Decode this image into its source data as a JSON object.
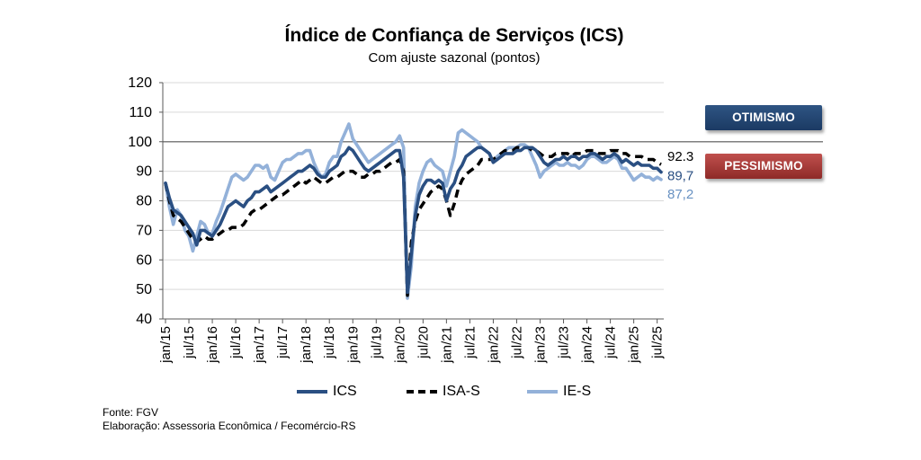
{
  "chart_data": {
    "type": "line",
    "title": "Índice de Confiança de Serviços (ICS)",
    "subtitle": "Com ajuste sazonal (pontos)",
    "ylim": [
      40,
      120
    ],
    "yticks": [
      40,
      50,
      60,
      70,
      80,
      90,
      100,
      110,
      120
    ],
    "reference_line": 100,
    "x": [
      "jan/15",
      "fev/15",
      "mar/15",
      "abr/15",
      "mai/15",
      "jun/15",
      "jul/15",
      "ago/15",
      "set/15",
      "out/15",
      "nov/15",
      "dez/15",
      "jan/16",
      "fev/16",
      "mar/16",
      "abr/16",
      "mai/16",
      "jun/16",
      "jul/16",
      "ago/16",
      "set/16",
      "out/16",
      "nov/16",
      "dez/16",
      "jan/17",
      "fev/17",
      "mar/17",
      "abr/17",
      "mai/17",
      "jun/17",
      "jul/17",
      "ago/17",
      "set/17",
      "out/17",
      "nov/17",
      "dez/17",
      "jan/18",
      "fev/18",
      "mar/18",
      "abr/18",
      "mai/18",
      "jun/18",
      "jul/18",
      "ago/18",
      "set/18",
      "out/18",
      "nov/18",
      "dez/18",
      "jan/19",
      "fev/19",
      "mar/19",
      "abr/19",
      "mai/19",
      "jun/19",
      "jul/19",
      "ago/19",
      "set/19",
      "out/19",
      "nov/19",
      "dez/19",
      "jan/20",
      "fev/20",
      "mar/20",
      "abr/20",
      "mai/20",
      "jun/20",
      "jul/20",
      "ago/20",
      "set/20",
      "out/20",
      "nov/20",
      "dez/20",
      "jan/21",
      "fev/21",
      "mar/21",
      "abr/21",
      "mai/21",
      "jun/21",
      "jul/21",
      "ago/21",
      "set/21",
      "out/21",
      "nov/21",
      "dez/21",
      "jan/22",
      "fev/22",
      "mar/22",
      "abr/22",
      "mai/22",
      "jun/22",
      "jul/22",
      "ago/22",
      "set/22",
      "out/22",
      "nov/22",
      "dez/22",
      "jan/23",
      "fev/23",
      "mar/23",
      "abr/23",
      "mai/23",
      "jun/23",
      "jul/23",
      "ago/23",
      "set/23",
      "out/23",
      "nov/23",
      "dez/23",
      "jan/24",
      "fev/24",
      "mar/24",
      "abr/24",
      "mai/24",
      "jun/24",
      "jul/24",
      "ago/24",
      "set/24",
      "out/24",
      "nov/24",
      "dez/24",
      "jan/25",
      "fev/25",
      "mar/25",
      "abr/25",
      "mai/25",
      "jun/25",
      "jul/25",
      "ago/25"
    ],
    "xtick_labels": [
      "jan/15",
      "jul/15",
      "jan/16",
      "jul/16",
      "jan/17",
      "jul/17",
      "jan/18",
      "jul/18",
      "jan/19",
      "jul/19",
      "jan/20",
      "jul/20",
      "jan/21",
      "jul/21",
      "jan/22",
      "jul/22",
      "jan/23",
      "jul/23",
      "jan/24",
      "jul/24",
      "jan/25",
      "jul/25"
    ],
    "series": [
      {
        "name": "ICS",
        "color": "#2a4f82",
        "dash": "solid",
        "last_label": "89,7",
        "label_color": "#2a4f82",
        "values": [
          86,
          81,
          77,
          76,
          75,
          73,
          71,
          69,
          65,
          70,
          70,
          69,
          68,
          70,
          72,
          75,
          78,
          79,
          80,
          79,
          78,
          80,
          81,
          83,
          83,
          84,
          85,
          83,
          84,
          85,
          86,
          87,
          88,
          89,
          90,
          90,
          91,
          92,
          91,
          89,
          88,
          88,
          90,
          91,
          92,
          95,
          96,
          98,
          97,
          95,
          93,
          91,
          90,
          91,
          92,
          93,
          94,
          95,
          96,
          97,
          97,
          88,
          49,
          62,
          75,
          82,
          85,
          87,
          87,
          86,
          87,
          86,
          80,
          84,
          86,
          90,
          92,
          95,
          96,
          97,
          98,
          98,
          97,
          96,
          93,
          94,
          95,
          96,
          96,
          96,
          97,
          97,
          98,
          98,
          98,
          97,
          95,
          93,
          92,
          93,
          94,
          94,
          95,
          94,
          95,
          95,
          94,
          95,
          95,
          96,
          96,
          95,
          94,
          95,
          95,
          96,
          95,
          93,
          94,
          93,
          92,
          93,
          92,
          92,
          92,
          91,
          91,
          89.7
        ]
      },
      {
        "name": "ISA-S",
        "color": "#000000",
        "dash": "dashed",
        "last_label": "92.3",
        "label_color": "#000000",
        "values": [
          86,
          80,
          75,
          74,
          73,
          71,
          69,
          67,
          66,
          67,
          68,
          67,
          67,
          68,
          69,
          70,
          70,
          71,
          71,
          71,
          72,
          74,
          76,
          77,
          77,
          78,
          79,
          80,
          81,
          82,
          82,
          83,
          84,
          85,
          86,
          87,
          86,
          87,
          88,
          87,
          86,
          86,
          87,
          88,
          88,
          89,
          90,
          90,
          90,
          89,
          88,
          88,
          89,
          89,
          90,
          90,
          91,
          92,
          93,
          93,
          94,
          90,
          48,
          66,
          73,
          77,
          79,
          81,
          83,
          84,
          85,
          84,
          80,
          75,
          79,
          84,
          87,
          89,
          90,
          91,
          92,
          94,
          94,
          94,
          94,
          95,
          96,
          97,
          97,
          97,
          98,
          98,
          98,
          98,
          97,
          97,
          96,
          95,
          95,
          95,
          96,
          96,
          96,
          96,
          95,
          96,
          96,
          96,
          97,
          97,
          97,
          96,
          96,
          96,
          97,
          97,
          97,
          96,
          96,
          95,
          95,
          95,
          95,
          94,
          94,
          94,
          93,
          92.3
        ]
      },
      {
        "name": "IE-S",
        "color": "#93b1d9",
        "dash": "solid",
        "last_label": "87,2",
        "label_color": "#6891c2",
        "values": [
          86,
          78,
          72,
          77,
          75,
          70,
          68,
          63,
          68,
          73,
          72,
          69,
          69,
          73,
          76,
          80,
          84,
          88,
          89,
          88,
          87,
          88,
          90,
          92,
          92,
          91,
          92,
          88,
          87,
          90,
          93,
          94,
          94,
          95,
          96,
          96,
          97,
          97,
          93,
          90,
          88,
          89,
          93,
          95,
          95,
          100,
          103,
          106,
          101,
          99,
          97,
          95,
          93,
          94,
          95,
          96,
          97,
          98,
          99,
          100,
          102,
          98,
          47,
          58,
          78,
          86,
          90,
          93,
          94,
          92,
          91,
          90,
          85,
          90,
          95,
          103,
          104,
          103,
          102,
          101,
          100,
          98,
          97,
          96,
          93,
          95,
          96,
          97,
          98,
          98,
          98,
          99,
          99,
          98,
          95,
          92,
          88,
          90,
          91,
          92,
          93,
          92,
          92,
          93,
          92,
          92,
          91,
          92,
          94,
          95,
          95,
          94,
          93,
          93,
          94,
          95,
          94,
          91,
          91,
          89,
          87,
          88,
          89,
          88,
          88,
          87,
          88,
          87.2
        ]
      }
    ],
    "bands": [
      {
        "label": "OTIMISMO",
        "color": "#1f426f"
      },
      {
        "label": "PESSIMISMO",
        "color": "#a83b38"
      }
    ]
  },
  "notes": {
    "source": "Fonte: FGV",
    "author": "Elaboração: Assessoria Econômica / Fecomércio-RS"
  }
}
